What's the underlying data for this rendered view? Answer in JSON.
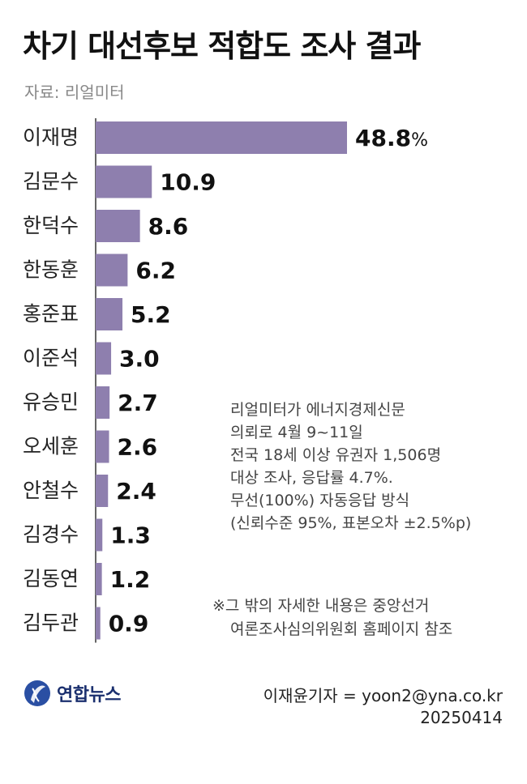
{
  "title": "차기 대선후보 적합도 조사 결과",
  "source": "자료: 리얼미터",
  "chart_data": {
    "type": "bar",
    "orientation": "horizontal",
    "title": "차기 대선후보 적합도 조사 결과",
    "categories": [
      "이재명",
      "김문수",
      "한덕수",
      "한동훈",
      "홍준표",
      "이준석",
      "유승민",
      "오세훈",
      "안철수",
      "김경수",
      "김동연",
      "김두관"
    ],
    "values": [
      48.8,
      10.9,
      8.6,
      6.2,
      5.2,
      3.0,
      2.7,
      2.6,
      2.4,
      1.3,
      1.2,
      0.9
    ],
    "value_labels": [
      "48.8",
      "10.9",
      "8.6",
      "6.2",
      "5.2",
      "3.0",
      "2.7",
      "2.6",
      "2.4",
      "1.3",
      "1.2",
      "0.9"
    ],
    "unit_suffix": "%",
    "xlim": [
      0,
      48.8
    ],
    "grid": false,
    "bar_color": "#8e7fae"
  },
  "notes": [
    "리얼미터가 에너지경제신문",
    "의뢰로 4월 9~11일",
    "전국 18세 이상 유권자 1,506명",
    "대상 조사, 응답률 4.7%.",
    "무선(100%) 자동응답 방식",
    "(신뢰수준 95%, 표본오차 ±2.5%p)"
  ],
  "footnote": {
    "line1": "※그 밖의 자세한 내용은 중앙선거",
    "line2": "여론조사심의위원회 홈페이지 참조"
  },
  "logo": {
    "text": "연합뉴스",
    "icon": "yonhap-globe-icon"
  },
  "byline": {
    "reporter": "이재윤기자 = yoon2@yna.co.kr",
    "date": "20250414"
  }
}
